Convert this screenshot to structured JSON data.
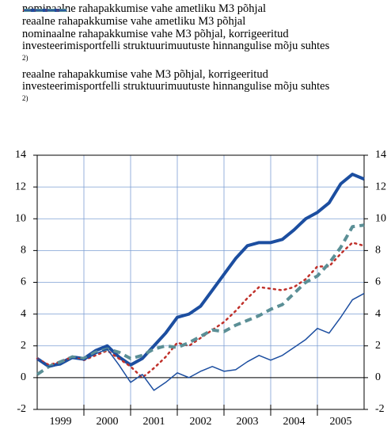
{
  "chart_data": {
    "type": "line",
    "x": [
      1999,
      1999.25,
      1999.5,
      1999.75,
      2000,
      2000.25,
      2000.5,
      2000.75,
      2001,
      2001.25,
      2001.5,
      2001.75,
      2002,
      2002.25,
      2002.5,
      2002.75,
      2003,
      2003.25,
      2003.5,
      2003.75,
      2004,
      2004.25,
      2004.5,
      2004.75,
      2005,
      2005.25,
      2005.5,
      2005.75,
      2006
    ],
    "year_labels": [
      "1999",
      "2000",
      "2001",
      "2002",
      "2003",
      "2004",
      "2005"
    ],
    "xlim": [
      1999,
      2006
    ],
    "ylim": [
      -2,
      14
    ],
    "yticks": [
      -2,
      0,
      2,
      4,
      6,
      8,
      10,
      12,
      14
    ],
    "grid": true,
    "grid_color": "#7d9fd3",
    "series": [
      {
        "name": "nominaalne rahapakkumise vahe ametliku M3 põhjal",
        "color": "#1c4ea0",
        "width": 4,
        "dash": "solid",
        "values": [
          1.2,
          0.7,
          0.9,
          1.3,
          1.2,
          1.7,
          2.0,
          1.3,
          0.8,
          1.2,
          2.0,
          2.8,
          3.8,
          4.0,
          4.5,
          5.5,
          6.5,
          7.5,
          8.3,
          8.5,
          8.5,
          8.7,
          9.3,
          10.0,
          10.4,
          11.0,
          12.2,
          12.8,
          12.5
        ]
      },
      {
        "name": "reaalne rahapakkumise vahe ametliku M3 põhjal",
        "color": "#c0312b",
        "width": 2.5,
        "dash": "dot",
        "values": [
          1.2,
          0.8,
          1.0,
          1.3,
          1.1,
          1.4,
          1.7,
          1.2,
          0.7,
          0.0,
          0.6,
          1.3,
          2.2,
          2.0,
          2.5,
          3.0,
          3.5,
          4.2,
          5.0,
          5.7,
          5.6,
          5.5,
          5.7,
          6.2,
          7.0,
          7.0,
          7.8,
          8.5,
          8.3
        ]
      },
      {
        "name": "nominaalne rahapakkumise vahe M3 põhjal, korrigeeritud investeerimisportfelli struktuurimuutuste hinnangulise mõju suhtes",
        "footnote": "2)",
        "color": "#5b8f96",
        "width": 4,
        "dash": "dash",
        "values": [
          0.2,
          0.7,
          1.0,
          1.3,
          1.2,
          1.6,
          1.8,
          1.6,
          1.2,
          1.4,
          1.8,
          2.0,
          1.9,
          2.2,
          2.6,
          3.0,
          2.9,
          3.3,
          3.6,
          3.9,
          4.3,
          4.6,
          5.3,
          6.0,
          6.4,
          7.2,
          8.2,
          9.5,
          9.6
        ]
      },
      {
        "name": "reaalne rahapakkumise vahe M3 põhjal, korrigeeritud investeerimisportfelli struktuurimuutuste hinnangulise mõju suhtes",
        "footnote": "2)",
        "color": "#1c4ea0",
        "width": 1.5,
        "dash": "solid",
        "values": [
          1.2,
          0.7,
          0.8,
          1.2,
          1.1,
          1.5,
          1.8,
          0.8,
          -0.3,
          0.2,
          -0.8,
          -0.3,
          0.3,
          0.0,
          0.4,
          0.7,
          0.4,
          0.5,
          1.0,
          1.4,
          1.1,
          1.4,
          1.9,
          2.4,
          3.1,
          2.8,
          3.8,
          4.9,
          5.3
        ]
      }
    ]
  }
}
